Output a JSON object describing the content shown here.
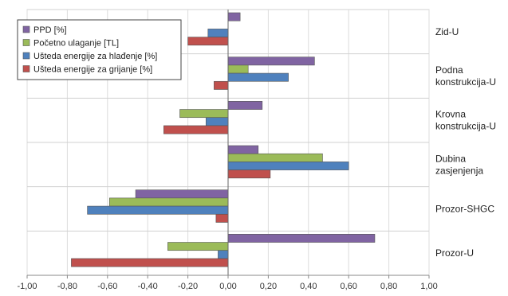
{
  "chart_data": {
    "type": "bar",
    "orientation": "horizontal",
    "categories": [
      [
        "Zid-U"
      ],
      [
        "Podna",
        "konstrukcija-U"
      ],
      [
        "Krovna",
        "konstrukcija-U"
      ],
      [
        "Dubina",
        "zasjenjenja"
      ],
      [
        "Prozor-SHGC"
      ],
      [
        "Prozor-U"
      ]
    ],
    "series": [
      {
        "name": "PPD [%]",
        "color": "#8064a2",
        "values": [
          0.06,
          0.43,
          0.17,
          0.15,
          -0.46,
          0.73
        ]
      },
      {
        "name": "Početno ulaganje [TL]",
        "color": "#9bbb59",
        "values": [
          0.0,
          0.1,
          -0.24,
          0.47,
          -0.59,
          -0.3
        ]
      },
      {
        "name": "Ušteda energije za hlađenje [%]",
        "color": "#4f81bd",
        "values": [
          -0.1,
          0.3,
          -0.11,
          0.6,
          -0.7,
          -0.05
        ]
      },
      {
        "name": "Ušteda energije za grijanje [%]",
        "color": "#c0504d",
        "values": [
          -0.2,
          -0.07,
          -0.32,
          0.21,
          -0.06,
          -0.78
        ]
      }
    ],
    "xlim": [
      -1.0,
      1.0
    ],
    "xticks": [
      "-1,00",
      "-0,80",
      "-0,60",
      "-0,40",
      "-0,20",
      "0,00",
      "0,20",
      "0,40",
      "0,60",
      "0,80",
      "1,00"
    ],
    "xtick_values": [
      -1.0,
      -0.8,
      -0.6,
      -0.4,
      -0.2,
      0.0,
      0.2,
      0.4,
      0.6,
      0.8,
      1.0
    ],
    "legend_position": "top-left",
    "grid": true
  }
}
